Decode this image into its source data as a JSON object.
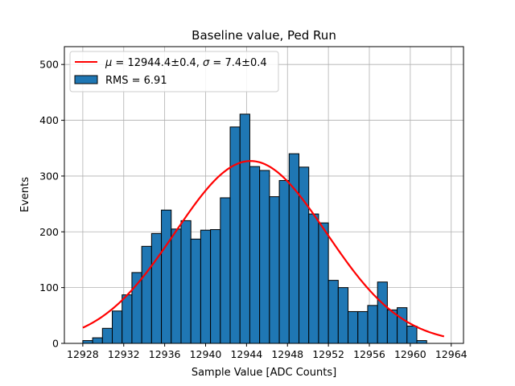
{
  "chart_data": {
    "type": "bar",
    "title": "Baseline value, Ped Run",
    "xlabel": "Sample Value [ADC Counts]",
    "ylabel": "Events",
    "xlim": [
      12926.2,
      12965.2
    ],
    "ylim": [
      0,
      532
    ],
    "x_ticks": [
      12928,
      12932,
      12936,
      12940,
      12944,
      12948,
      12952,
      12956,
      12960,
      12964
    ],
    "y_ticks": [
      0,
      100,
      200,
      300,
      400,
      500
    ],
    "grid": true,
    "legend_position": "top-left",
    "histogram": {
      "name": "RMS = 6.91",
      "color": "#1f77b4",
      "edge_color": "#000000",
      "bin_edges": [
        12928.0,
        12928.96,
        12929.92,
        12930.88,
        12931.84,
        12932.8,
        12933.76,
        12934.72,
        12935.68,
        12936.64,
        12937.6,
        12938.56,
        12939.52,
        12940.48,
        12941.44,
        12942.4,
        12943.36,
        12944.32,
        12945.28,
        12946.24,
        12947.2,
        12948.16,
        12949.12,
        12950.08,
        12951.04,
        12952.0,
        12952.96,
        12953.92,
        12954.88,
        12955.84,
        12956.8,
        12957.76,
        12958.72,
        12959.68,
        12960.64,
        12961.6
      ],
      "counts": [
        5,
        10,
        27,
        58,
        87,
        127,
        174,
        197,
        239,
        205,
        220,
        187,
        203,
        204,
        261,
        388,
        411,
        317,
        310,
        263,
        292,
        340,
        316,
        232,
        216,
        113,
        100,
        57,
        57,
        68,
        110,
        60,
        64,
        31,
        5
      ]
    },
    "fit": {
      "name": "$\\mu = 12944.4 \\pm 0.4$, $\\sigma = 7.4 \\pm 0.4$",
      "label_parts": {
        "mu_symbol": "μ",
        "mu_text": " = 12944.4±0.4, ",
        "sigma_symbol": "σ",
        "sigma_text": " = 7.4±0.4"
      },
      "color": "#ff0000",
      "mu": 12944.4,
      "sigma": 7.4,
      "amplitude": 327,
      "x_range": [
        12928,
        12963.3
      ]
    },
    "legend": {
      "fit_label": "μ = 12944.4±0.4, σ = 7.4±0.4",
      "hist_label": "RMS = 6.91"
    }
  }
}
